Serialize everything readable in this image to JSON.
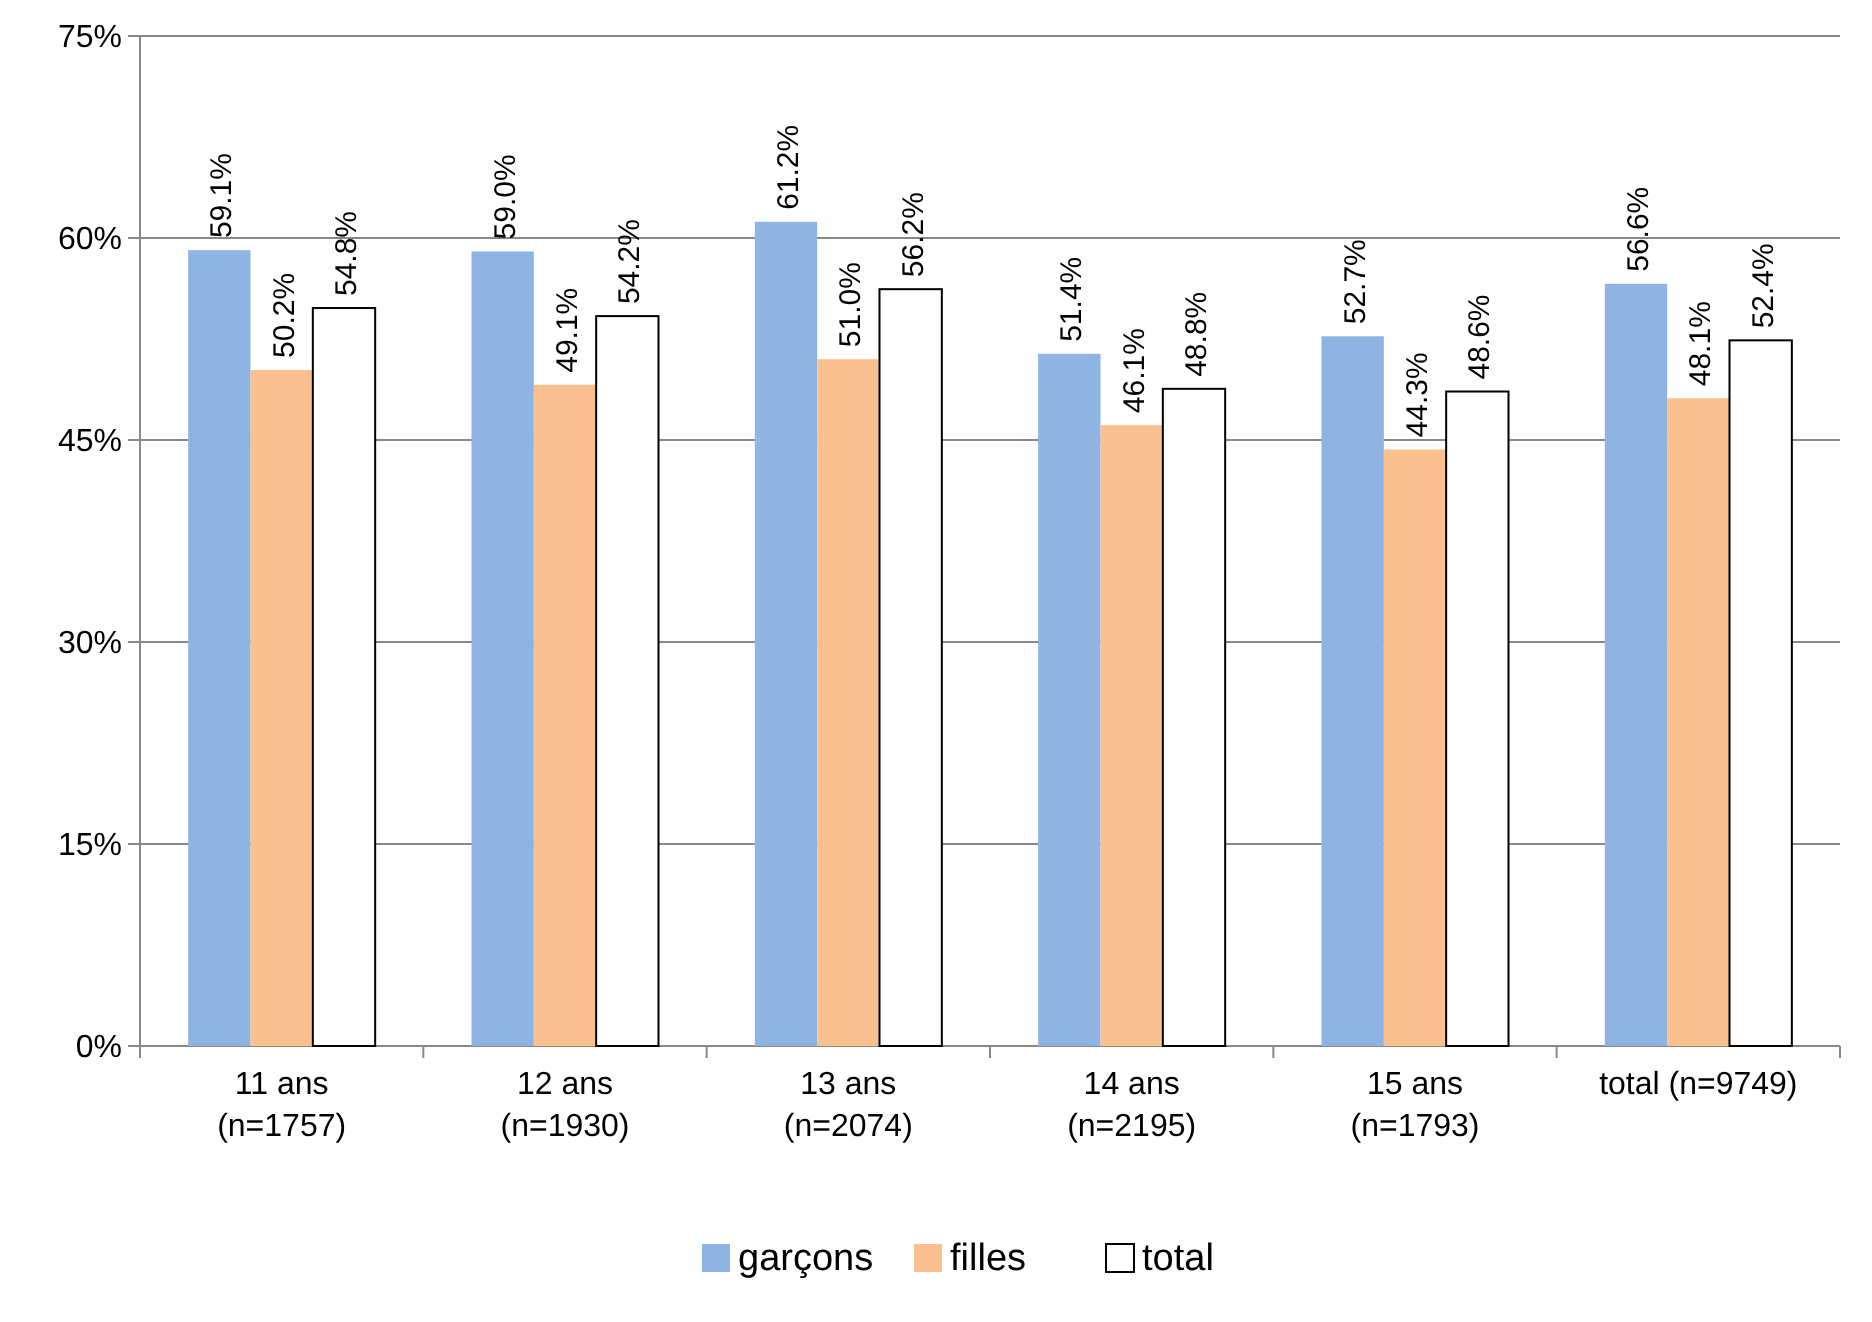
{
  "chart_data": {
    "type": "bar",
    "categories": [
      "11 ans\n(n=1757)",
      "12 ans\n(n=1930)",
      "13 ans\n(n=2074)",
      "14 ans\n(n=2195)",
      "15 ans\n(n=1793)",
      "total (n=9749)"
    ],
    "series": [
      {
        "name": "garçons",
        "color": "#8eb4e3",
        "values": [
          59.1,
          59.0,
          61.2,
          51.4,
          52.7,
          56.6
        ],
        "value_labels": [
          "59.1%",
          "59.0%",
          "61.2%",
          "51.4%",
          "52.7%",
          "56.6%"
        ]
      },
      {
        "name": "filles",
        "color": "#fac090",
        "values": [
          50.2,
          49.1,
          51.0,
          46.1,
          44.3,
          48.1
        ],
        "value_labels": [
          "50.2%",
          "49.1%",
          "51.0%",
          "46.1%",
          "44.3%",
          "48.1%"
        ]
      },
      {
        "name": "total",
        "color": "#ffffff",
        "values": [
          54.8,
          54.2,
          56.2,
          48.8,
          48.6,
          52.4
        ],
        "value_labels": [
          "54.8%",
          "54.2%",
          "56.2%",
          "48.8%",
          "48.6%",
          "52.4%"
        ]
      }
    ],
    "ylim": [
      0,
      75
    ],
    "yticks": [
      {
        "value": 0,
        "label": "0%"
      },
      {
        "value": 15,
        "label": "15%"
      },
      {
        "value": 30,
        "label": "30%"
      },
      {
        "value": 45,
        "label": "45%"
      },
      {
        "value": 60,
        "label": "60%"
      },
      {
        "value": 75,
        "label": "75%"
      }
    ],
    "grid": "y",
    "legend": "bottom"
  }
}
